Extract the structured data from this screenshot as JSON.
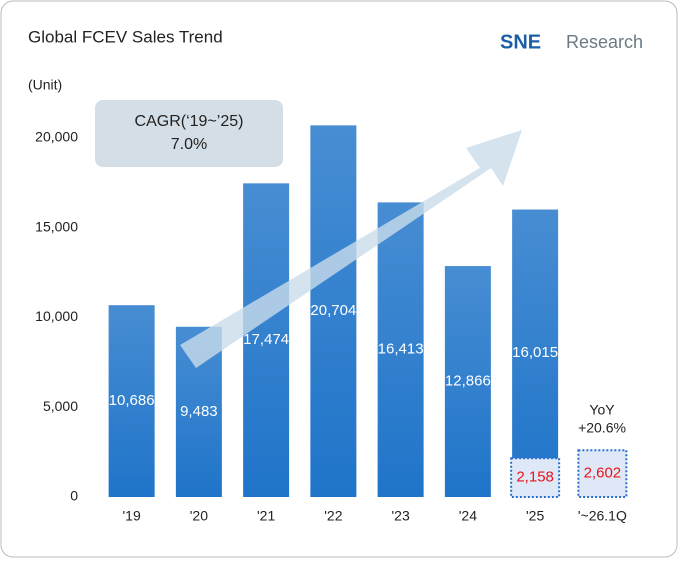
{
  "chart_data": {
    "type": "bar",
    "title": "Global FCEV Sales Trend",
    "unit_label": "(Unit)",
    "logo": [
      "SNE",
      "Research"
    ],
    "categories": [
      "'19",
      "'20",
      "'21",
      "'22",
      "'23",
      "'24",
      "'25",
      "'~26.1Q"
    ],
    "series": [
      {
        "color": "#1f74c9",
        "values": [
          10686,
          9483,
          17474,
          20704,
          16413,
          12866,
          16015,
          null
        ],
        "value_labels": [
          "10,686",
          "9,483",
          "17,474",
          "20,704",
          "16,413",
          "12,866",
          "16,015",
          null
        ],
        "label_color": "#ffffff"
      },
      {
        "color": "#dfe8f6",
        "border_color": "#2a6fcf",
        "values": [
          null,
          null,
          null,
          null,
          null,
          null,
          2158,
          2602
        ],
        "value_labels": [
          null,
          null,
          null,
          null,
          null,
          null,
          "2,158",
          "2,602"
        ],
        "label_color": "#e8141c"
      }
    ],
    "ylim": [
      0,
      20000
    ],
    "yticks": [
      0,
      {
        "value": 5000,
        "label": "5,000"
      },
      {
        "value": 10000,
        "label": "10,000"
      },
      {
        "value": 15000,
        "label": "15,000"
      },
      {
        "value": 20000,
        "label": "20,000"
      }
    ],
    "annotations": {
      "cagr": [
        "CAGR(‘19~’25)",
        "7.0%"
      ],
      "yoy": [
        "YoY",
        "+20.6%"
      ]
    }
  }
}
